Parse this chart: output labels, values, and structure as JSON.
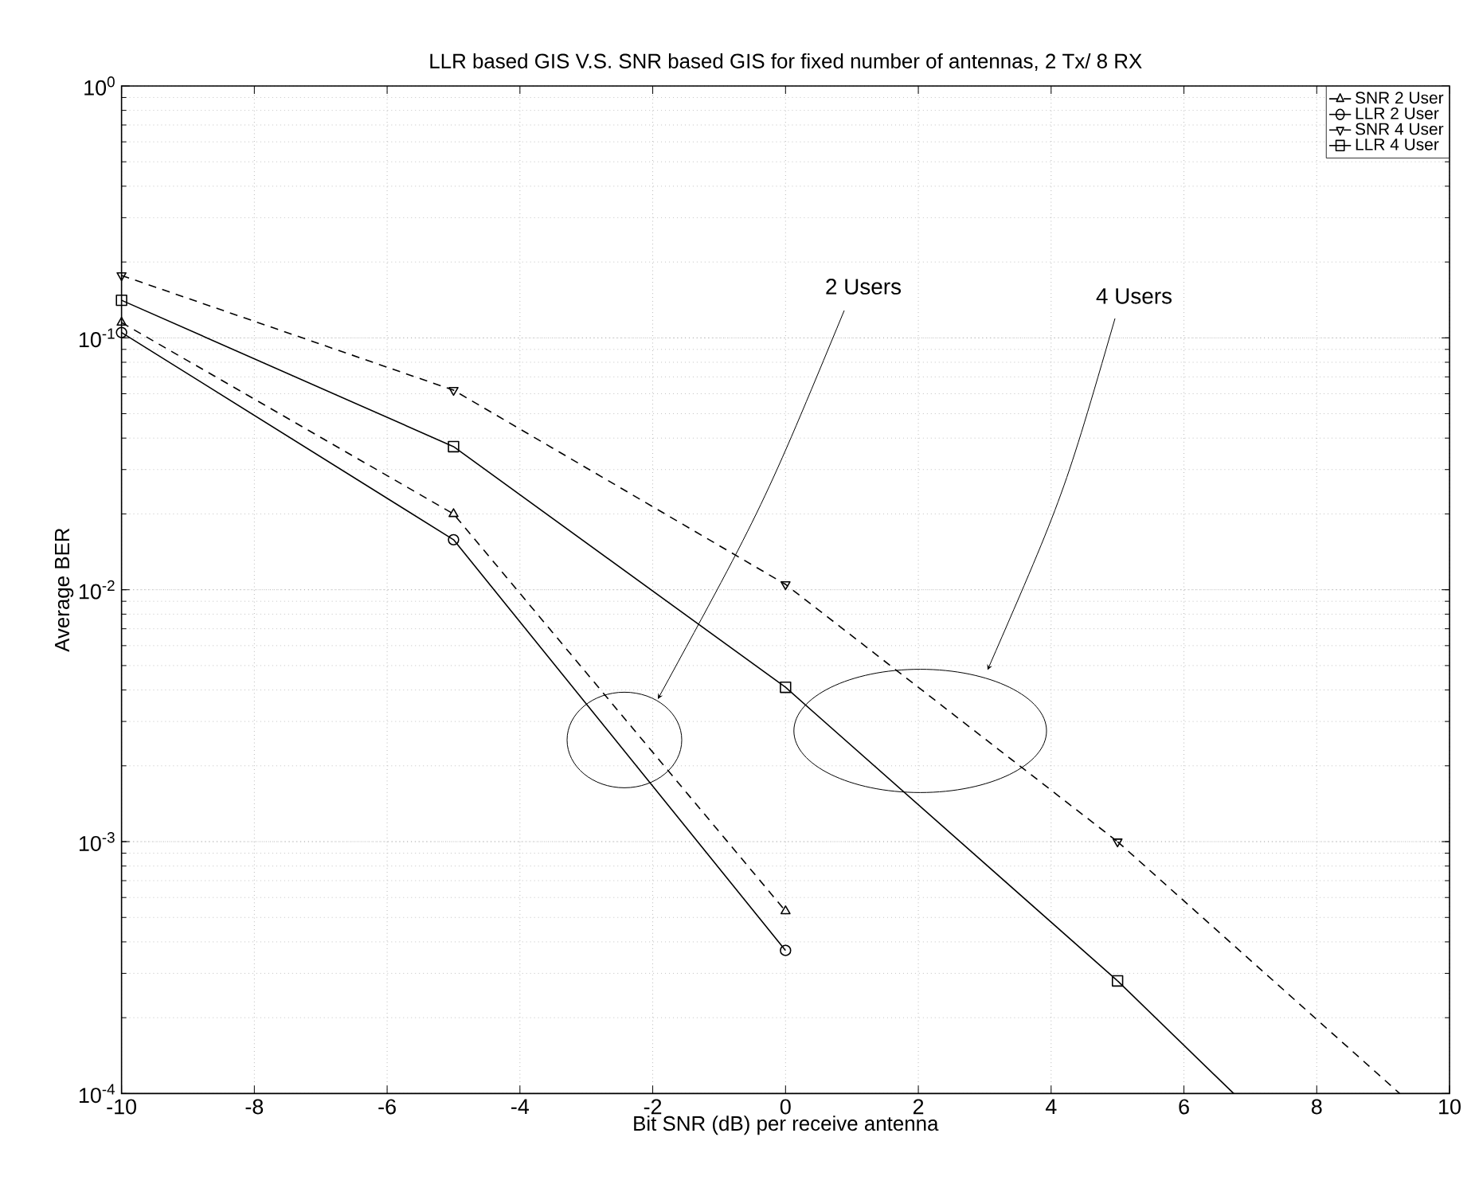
{
  "chart_data": {
    "type": "line",
    "title": "LLR based GIS V.S. SNR based GIS for fixed number of antennas, 2 Tx/ 8 RX",
    "xlabel": "Bit SNR (dB) per receive antenna",
    "ylabel": "Average BER",
    "series": [
      {
        "name": "SNR 2 User",
        "color": "#000000",
        "marker": "triangle",
        "line_style": "dashed",
        "x": [
          -10,
          -5,
          0
        ],
        "values": [
          0.115,
          0.02,
          0.00053
        ]
      },
      {
        "name": "LLR 2 User",
        "color": "#000000",
        "marker": "circle",
        "line_style": "solid",
        "x": [
          -10,
          -5,
          0
        ],
        "values": [
          0.105,
          0.0158,
          0.00037
        ]
      },
      {
        "name": "SNR 4 User",
        "color": "#000000",
        "marker": "triangle down",
        "line_style": "dashed",
        "x": [
          -10,
          -5,
          0,
          5
        ],
        "values": [
          0.177,
          0.062,
          0.0105,
          0.001
        ]
      },
      {
        "name": "LLR 4 User",
        "color": "#000000",
        "marker": "square",
        "line_style": "solid",
        "x": [
          -10,
          -5,
          0,
          5
        ],
        "values": [
          0.141,
          0.037,
          0.0041,
          0.00028
        ]
      },
      {
        "type": "line",
        "color": "#000000",
        "marker": "none",
        "line_style": "dashed",
        "x": [
          5,
          9.25
        ],
        "values": [
          0.001,
          0.0001
        ]
      },
      {
        "type": "line",
        "color": "#000000",
        "marker": "none",
        "line_style": "solid",
        "x": [
          5,
          6.75
        ],
        "values": [
          0.00028,
          0.0001
        ]
      }
    ],
    "xlim": [
      -10,
      10
    ],
    "xticks": [
      -10,
      -8,
      -6,
      -4,
      -2,
      0,
      2,
      4,
      6,
      8,
      10
    ],
    "ylim": [
      0.0001,
      1
    ],
    "log": "y",
    "yticks": [
      {
        "value": 0.0001,
        "label": "10$^{-4}$"
      },
      {
        "value": 0.001,
        "label": "10$^{-3}$"
      },
      {
        "value": 0.01,
        "label": "10$^{-2}$"
      },
      {
        "value": 0.1,
        "label": "10$^{-1}$"
      },
      {
        "value": 1,
        "label": "10$^{0}$"
      }
    ],
    "grid": true,
    "legend": "top right",
    "annotations": [
      "2 Users",
      "4 Users"
    ]
  }
}
